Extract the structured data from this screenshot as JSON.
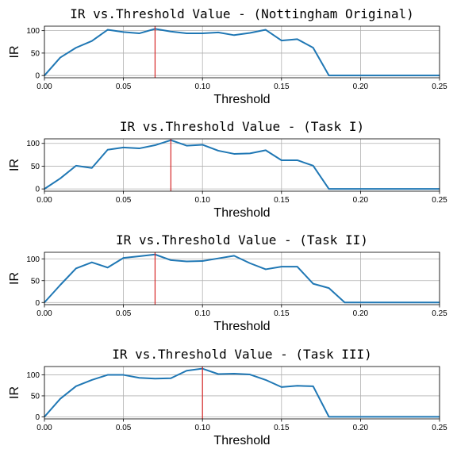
{
  "chart_data": [
    {
      "type": "line",
      "title": "IR vs.Threshold Value - (Nottingham Original)",
      "xlabel": "Threshold",
      "ylabel": "IR",
      "xlim": [
        0,
        0.25
      ],
      "ylim": [
        -5,
        110
      ],
      "xticks": [
        "0.00",
        "0.05",
        "0.10",
        "0.15",
        "0.20",
        "0.25"
      ],
      "yticks": [
        "0",
        "50",
        "100"
      ],
      "grid": true,
      "x": [
        0.0,
        0.01,
        0.02,
        0.03,
        0.04,
        0.05,
        0.06,
        0.07,
        0.08,
        0.09,
        0.1,
        0.11,
        0.12,
        0.13,
        0.14,
        0.15,
        0.16,
        0.17,
        0.18,
        0.19,
        0.2,
        0.21,
        0.22,
        0.23,
        0.24,
        0.25
      ],
      "values": [
        0,
        40,
        62,
        77,
        102,
        97,
        94,
        104,
        98,
        94,
        94,
        96,
        90,
        95,
        102,
        78,
        81,
        62,
        0,
        0,
        0,
        0,
        0,
        0,
        0,
        0
      ],
      "marker_x": 0.07,
      "colors": {
        "line": "#1f77b4",
        "marker": "#d62728"
      }
    },
    {
      "type": "line",
      "title": "IR vs.Threshold Value - (Task I)",
      "xlabel": "Threshold",
      "ylabel": "IR",
      "xlim": [
        0,
        0.25
      ],
      "ylim": [
        -5,
        110
      ],
      "xticks": [
        "0.00",
        "0.05",
        "0.10",
        "0.15",
        "0.20",
        "0.25"
      ],
      "yticks": [
        "0",
        "50",
        "100"
      ],
      "grid": true,
      "x": [
        0.0,
        0.01,
        0.02,
        0.03,
        0.04,
        0.05,
        0.06,
        0.07,
        0.08,
        0.09,
        0.1,
        0.11,
        0.12,
        0.13,
        0.14,
        0.15,
        0.16,
        0.17,
        0.18,
        0.19,
        0.2,
        0.21,
        0.22,
        0.23,
        0.24,
        0.25
      ],
      "values": [
        0,
        23,
        51,
        46,
        86,
        91,
        89,
        96,
        107,
        95,
        97,
        84,
        77,
        78,
        85,
        63,
        63,
        51,
        0,
        0,
        0,
        0,
        0,
        0,
        0,
        0
      ],
      "marker_x": 0.08,
      "colors": {
        "line": "#1f77b4",
        "marker": "#d62728"
      }
    },
    {
      "type": "line",
      "title": "IR vs.Threshold Value - (Task II)",
      "xlabel": "Threshold",
      "ylabel": "IR",
      "xlim": [
        0,
        0.25
      ],
      "ylim": [
        -5,
        115
      ],
      "xticks": [
        "0.00",
        "0.05",
        "0.10",
        "0.15",
        "0.20",
        "0.25"
      ],
      "yticks": [
        "0",
        "50",
        "100"
      ],
      "grid": true,
      "x": [
        0.0,
        0.01,
        0.02,
        0.03,
        0.04,
        0.05,
        0.06,
        0.07,
        0.08,
        0.09,
        0.1,
        0.11,
        0.12,
        0.13,
        0.14,
        0.15,
        0.16,
        0.17,
        0.18,
        0.19,
        0.2,
        0.21,
        0.22,
        0.23,
        0.24,
        0.25
      ],
      "values": [
        0,
        40,
        78,
        92,
        80,
        102,
        106,
        110,
        97,
        94,
        95,
        101,
        107,
        90,
        76,
        82,
        82,
        43,
        33,
        0,
        0,
        0,
        0,
        0,
        0,
        0
      ],
      "marker_x": 0.07,
      "colors": {
        "line": "#1f77b4",
        "marker": "#d62728"
      }
    },
    {
      "type": "line",
      "title": "IR vs.Threshold Value - (Task III)",
      "xlabel": "Threshold",
      "ylabel": "IR",
      "xlim": [
        0,
        0.25
      ],
      "ylim": [
        -5,
        120
      ],
      "xticks": [
        "0.00",
        "0.05",
        "0.10",
        "0.15",
        "0.20",
        "0.25"
      ],
      "yticks": [
        "0",
        "50",
        "100"
      ],
      "grid": true,
      "x": [
        0.0,
        0.01,
        0.02,
        0.03,
        0.04,
        0.05,
        0.06,
        0.07,
        0.08,
        0.09,
        0.1,
        0.11,
        0.12,
        0.13,
        0.14,
        0.15,
        0.16,
        0.17,
        0.18,
        0.19,
        0.2,
        0.21,
        0.22,
        0.23,
        0.24,
        0.25
      ],
      "values": [
        0,
        43,
        73,
        88,
        100,
        100,
        93,
        91,
        92,
        110,
        115,
        102,
        103,
        101,
        88,
        71,
        74,
        73,
        0,
        0,
        0,
        0,
        0,
        0,
        0,
        0
      ],
      "marker_x": 0.1,
      "colors": {
        "line": "#1f77b4",
        "marker": "#d62728"
      }
    }
  ]
}
